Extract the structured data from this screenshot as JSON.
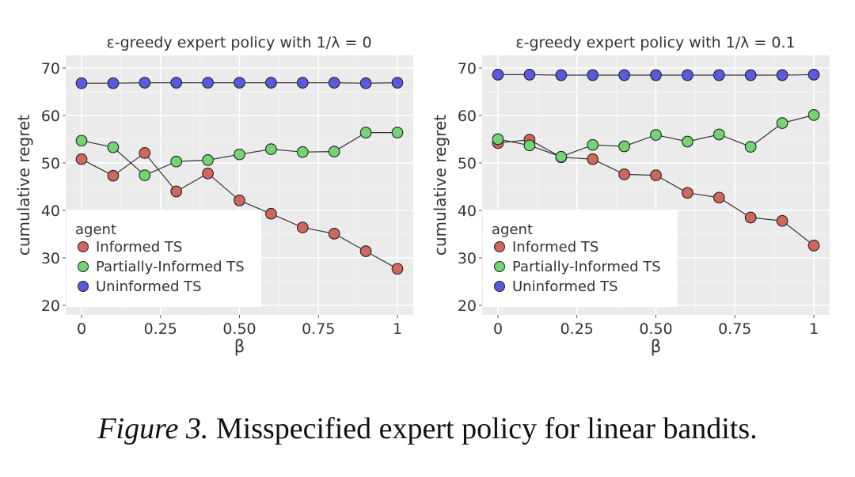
{
  "chart_data": [
    {
      "type": "line",
      "title": "ε-greedy expert policy with 1/λ = 0",
      "xlabel": "β",
      "ylabel": "cumulative regret",
      "xlim": [
        0,
        1
      ],
      "ylim": [
        20,
        70
      ],
      "x_ticks": [
        "0",
        "0.25",
        "0.50",
        "0.75",
        "1"
      ],
      "y_ticks": [
        "20",
        "30",
        "40",
        "50",
        "60",
        "70"
      ],
      "x": [
        0,
        0.1,
        0.2,
        0.3,
        0.4,
        0.5,
        0.6,
        0.7,
        0.8,
        0.9,
        1.0
      ],
      "series": [
        {
          "name": "Informed TS",
          "color": "#d1675c",
          "values": [
            50.8,
            47.3,
            52.1,
            44.0,
            47.8,
            42.1,
            39.3,
            36.4,
            35.1,
            31.4,
            27.7
          ]
        },
        {
          "name": "Partially-Informed TS",
          "color": "#72d472",
          "values": [
            54.7,
            53.3,
            47.4,
            50.3,
            50.6,
            51.8,
            52.9,
            52.3,
            52.4,
            56.4,
            56.4
          ]
        },
        {
          "name": "Uninformed TS",
          "color": "#5a5ae0",
          "values": [
            66.8,
            66.8,
            66.9,
            66.9,
            66.9,
            66.9,
            66.9,
            66.9,
            66.9,
            66.8,
            66.9
          ]
        }
      ],
      "legend": {
        "title": "agent",
        "placement": "bottom-left"
      },
      "grid": true
    },
    {
      "type": "line",
      "title": "ε-greedy expert policy with 1/λ = 0.1",
      "xlabel": "β",
      "ylabel": "cumulative regret",
      "xlim": [
        0,
        1
      ],
      "ylim": [
        20,
        70
      ],
      "x_ticks": [
        "0",
        "0.25",
        "0.50",
        "0.75",
        "1"
      ],
      "y_ticks": [
        "20",
        "30",
        "40",
        "50",
        "60",
        "70"
      ],
      "x": [
        0,
        0.1,
        0.2,
        0.3,
        0.4,
        0.5,
        0.6,
        0.7,
        0.8,
        0.9,
        1.0
      ],
      "series": [
        {
          "name": "Informed TS",
          "color": "#d1675c",
          "values": [
            54.2,
            54.9,
            51.2,
            50.8,
            47.6,
            47.4,
            43.7,
            42.7,
            38.5,
            37.8,
            32.6
          ]
        },
        {
          "name": "Partially-Informed TS",
          "color": "#72d472",
          "values": [
            55.0,
            53.7,
            51.3,
            53.8,
            53.5,
            55.9,
            54.5,
            56.0,
            53.4,
            58.4,
            60.1
          ]
        },
        {
          "name": "Uninformed TS",
          "color": "#5a5ae0",
          "values": [
            68.6,
            68.6,
            68.5,
            68.5,
            68.5,
            68.5,
            68.5,
            68.5,
            68.5,
            68.5,
            68.6
          ]
        }
      ],
      "legend": {
        "title": "agent",
        "placement": "bottom-left"
      },
      "grid": true
    }
  ],
  "caption": {
    "label": "Figure 3.",
    "text": "Misspecified expert policy for linear bandits."
  }
}
